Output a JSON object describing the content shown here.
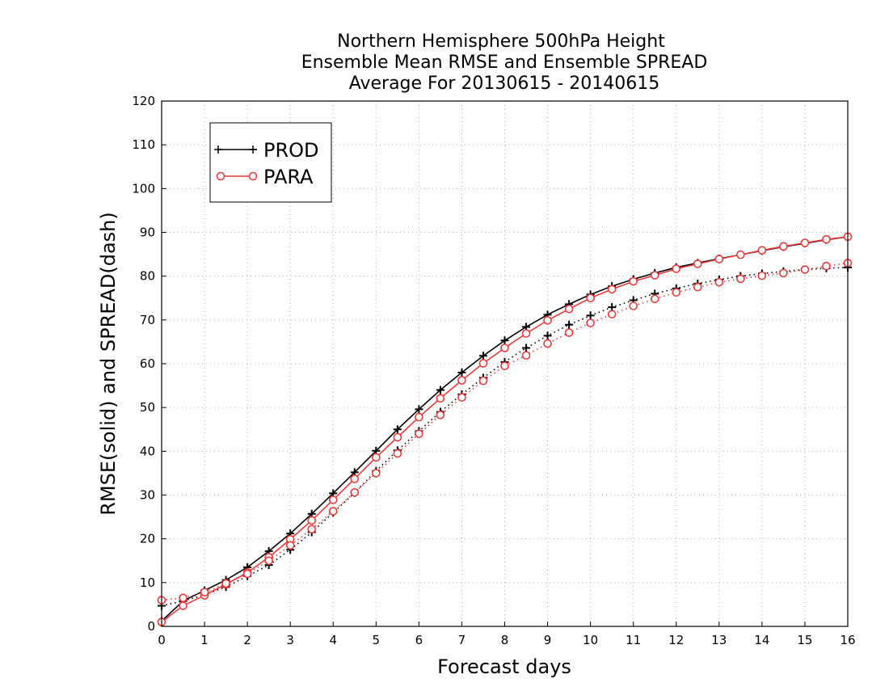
{
  "chart_data": {
    "type": "line",
    "title_lines": [
      "Northern Hemisphere 500hPa Height",
      "Ensemble Mean RMSE and Ensemble SPREAD",
      "Average For 20130615 - 20140615"
    ],
    "xlabel": "Forecast days",
    "ylabel": "RMSE(solid) and SPREAD(dash)",
    "xlim": [
      0,
      16
    ],
    "ylim": [
      0,
      120
    ],
    "x_ticks": [
      0,
      1,
      2,
      3,
      4,
      5,
      6,
      7,
      8,
      9,
      10,
      11,
      12,
      13,
      14,
      15,
      16
    ],
    "y_ticks": [
      0,
      10,
      20,
      30,
      40,
      50,
      60,
      70,
      80,
      90,
      100,
      110,
      120
    ],
    "grid": true,
    "legend_position": "top-left",
    "x": [
      0,
      0.5,
      1,
      1.5,
      2,
      2.5,
      3,
      3.5,
      4,
      4.5,
      5,
      5.5,
      6,
      6.5,
      7,
      7.5,
      8,
      8.5,
      9,
      9.5,
      10,
      10.5,
      11,
      11.5,
      12,
      12.5,
      13,
      13.5,
      14,
      14.5,
      15,
      15.5,
      16
    ],
    "series": [
      {
        "name": "PROD",
        "color": "#000000",
        "marker": "plus",
        "rmse": [
          1.2,
          5.8,
          8.2,
          10.6,
          13.5,
          17.2,
          21.2,
          25.7,
          30.4,
          35.2,
          40.1,
          45.0,
          49.6,
          54.0,
          58.0,
          61.8,
          65.3,
          68.4,
          71.2,
          73.6,
          75.8,
          77.7,
          79.3,
          80.7,
          82.0,
          83.0,
          84.0,
          84.9,
          85.8,
          86.7,
          87.5,
          88.3,
          89.0
        ],
        "spread": [
          4.7,
          5.8,
          7.2,
          9.0,
          11.5,
          14.0,
          17.5,
          21.5,
          26.0,
          30.5,
          35.5,
          40.2,
          44.6,
          49.0,
          53.0,
          56.8,
          60.4,
          63.6,
          66.4,
          68.9,
          71.0,
          72.9,
          74.5,
          76.0,
          77.2,
          78.3,
          79.2,
          80.0,
          80.6,
          81.1,
          81.5,
          81.8,
          82.0
        ],
        "spread_style": "dotted"
      },
      {
        "name": "PARA",
        "color": "#e83a3a",
        "marker": "circle",
        "rmse": [
          1.0,
          4.7,
          7.1,
          9.6,
          12.3,
          15.8,
          19.9,
          24.2,
          28.9,
          33.7,
          38.6,
          43.2,
          47.8,
          52.1,
          56.2,
          60.1,
          63.6,
          66.9,
          69.9,
          72.5,
          75.0,
          77.0,
          78.8,
          80.2,
          81.7,
          82.8,
          83.9,
          84.9,
          85.9,
          86.8,
          87.6,
          88.4,
          89.0
        ],
        "spread": [
          6.0,
          6.5,
          7.8,
          9.8,
          12.0,
          15.0,
          18.5,
          22.2,
          26.3,
          30.6,
          35.0,
          39.5,
          44.0,
          48.3,
          52.3,
          56.1,
          59.5,
          61.9,
          64.6,
          67.1,
          69.3,
          71.3,
          73.2,
          74.8,
          76.3,
          77.5,
          78.6,
          79.4,
          80.1,
          80.7,
          81.5,
          82.3,
          83.0
        ],
        "spread_style": "dotted"
      }
    ]
  }
}
